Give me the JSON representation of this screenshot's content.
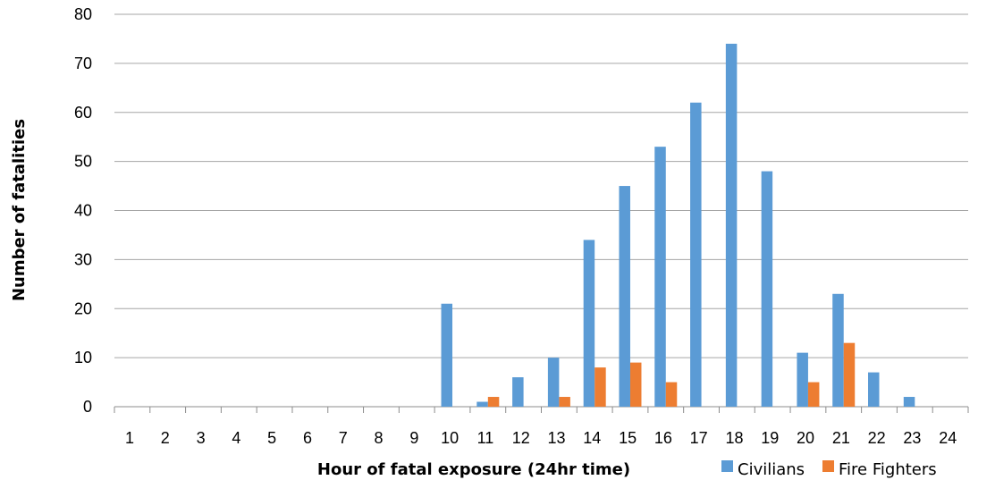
{
  "chart_data": {
    "type": "bar",
    "categories": [
      "1",
      "2",
      "3",
      "4",
      "5",
      "6",
      "7",
      "8",
      "9",
      "10",
      "11",
      "12",
      "13",
      "14",
      "15",
      "16",
      "17",
      "18",
      "19",
      "20",
      "21",
      "22",
      "23",
      "24"
    ],
    "series": [
      {
        "name": "Civilians",
        "color": "#5B9BD5",
        "values": [
          0,
          0,
          0,
          0,
          0,
          0,
          0,
          0,
          0,
          21,
          1,
          6,
          10,
          34,
          45,
          53,
          62,
          74,
          48,
          11,
          23,
          7,
          2,
          0
        ]
      },
      {
        "name": "Fire Fighters",
        "color": "#ED7D31",
        "values": [
          0,
          0,
          0,
          0,
          0,
          0,
          0,
          0,
          0,
          0,
          2,
          0,
          2,
          8,
          9,
          5,
          0,
          0,
          0,
          5,
          13,
          0,
          0,
          0
        ]
      }
    ],
    "title": "",
    "xlabel": "Hour of fatal exposure (24hr time)",
    "ylabel": "Number of fatalities",
    "ylim": [
      0,
      80
    ],
    "yticks": [
      "0",
      "10",
      "20",
      "30",
      "40",
      "50",
      "60",
      "70",
      "80"
    ],
    "grid": true,
    "legend_position": "bottom-right"
  }
}
